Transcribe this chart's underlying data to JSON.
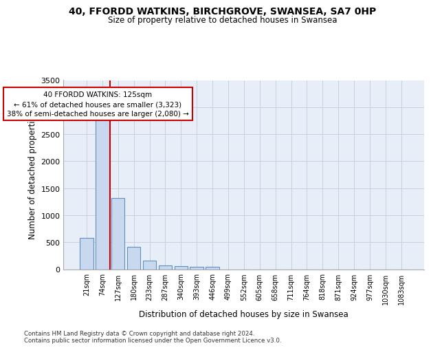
{
  "title1": "40, FFORDD WATKINS, BIRCHGROVE, SWANSEA, SA7 0HP",
  "title2": "Size of property relative to detached houses in Swansea",
  "xlabel": "Distribution of detached houses by size in Swansea",
  "ylabel": "Number of detached properties",
  "categories": [
    "21sqm",
    "74sqm",
    "127sqm",
    "180sqm",
    "233sqm",
    "287sqm",
    "340sqm",
    "393sqm",
    "446sqm",
    "499sqm",
    "552sqm",
    "605sqm",
    "658sqm",
    "711sqm",
    "764sqm",
    "818sqm",
    "871sqm",
    "924sqm",
    "977sqm",
    "1030sqm",
    "1083sqm"
  ],
  "bar_values": [
    575,
    2920,
    1320,
    410,
    155,
    75,
    55,
    45,
    45,
    0,
    0,
    0,
    0,
    0,
    0,
    0,
    0,
    0,
    0,
    0,
    0
  ],
  "bar_color": "#c8d8ee",
  "bar_edge_color": "#6090c0",
  "grid_color": "#c8d0e0",
  "bg_color": "#e8eef8",
  "annotation_text": "40 FFORDD WATKINS: 125sqm\n← 61% of detached houses are smaller (3,323)\n38% of semi-detached houses are larger (2,080) →",
  "vline_x": 1.5,
  "vline_color": "#cc0000",
  "footer": "Contains HM Land Registry data © Crown copyright and database right 2024.\nContains public sector information licensed under the Open Government Licence v3.0.",
  "ylim": [
    0,
    3500
  ],
  "yticks": [
    0,
    500,
    1000,
    1500,
    2000,
    2500,
    3000,
    3500
  ]
}
